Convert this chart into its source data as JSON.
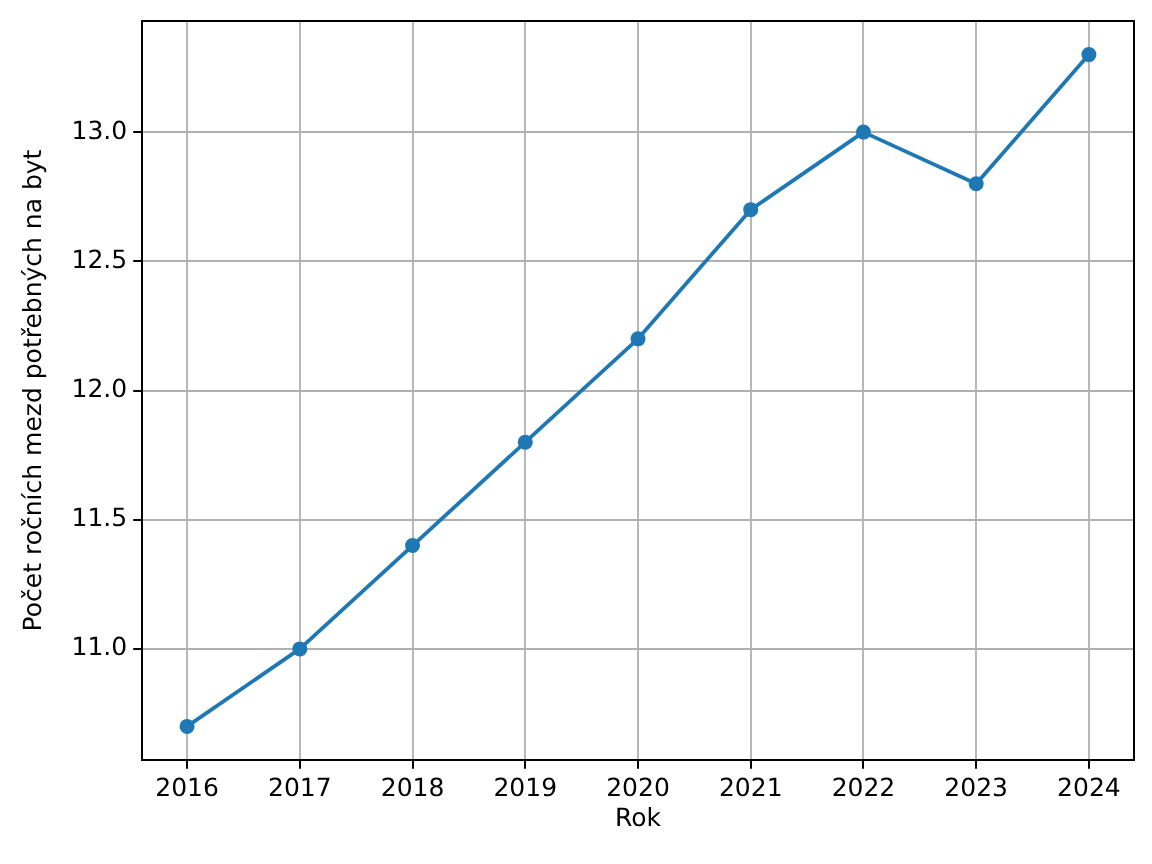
{
  "chart_data": {
    "type": "line",
    "xlabel": "Rok",
    "ylabel": "Počet ročních mezd potřebných na byt",
    "x": [
      2016,
      2017,
      2018,
      2019,
      2020,
      2021,
      2022,
      2023,
      2024
    ],
    "series": [
      {
        "color": "#1f77b4",
        "values": [
          10.7,
          11.0,
          11.4,
          11.8,
          12.2,
          12.7,
          13.0,
          12.8,
          13.3
        ]
      }
    ],
    "xlim": [
      2015.6,
      2024.4
    ],
    "xticks": [
      2016,
      2017,
      2018,
      2019,
      2020,
      2021,
      2022,
      2023,
      2024
    ],
    "ylim": [
      10.57,
      13.43
    ],
    "yticks": [
      {
        "value": 11,
        "label": "11.0"
      },
      11.5,
      {
        "value": 12,
        "label": "12.0"
      },
      12.5,
      {
        "value": 13,
        "label": "13.0"
      }
    ],
    "grid": true,
    "marker": "circle",
    "line_style": "solid"
  }
}
